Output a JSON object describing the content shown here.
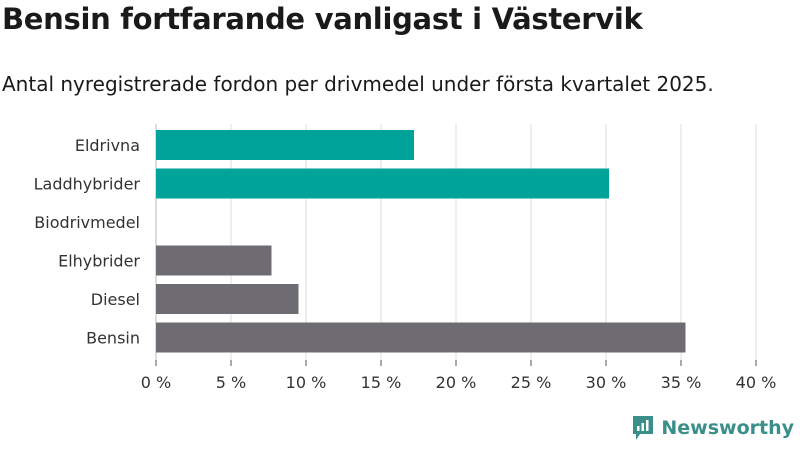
{
  "title": "Bensin fortfarande vanligast i Västervik",
  "subtitle": "Antal nyregistrerade fordon per drivmedel under första kvartalet 2025.",
  "brand": "Newsworthy",
  "colors": {
    "highlight": "#00a39a",
    "base": "#6e6c72",
    "grid": "#dddddd",
    "brand": "#3a8f8a"
  },
  "chart_data": {
    "type": "bar",
    "orientation": "horizontal",
    "categories": [
      "Eldrivna",
      "Laddhybrider",
      "Biodrivmedel",
      "Elhybrider",
      "Diesel",
      "Bensin"
    ],
    "values": [
      17.2,
      30.2,
      0,
      7.7,
      9.5,
      35.3
    ],
    "bar_colors": [
      "highlight",
      "highlight",
      "base",
      "base",
      "base",
      "base"
    ],
    "xlim": [
      0,
      40
    ],
    "x_ticks": [
      0,
      5,
      10,
      15,
      20,
      25,
      30,
      35,
      40
    ],
    "x_tick_labels": [
      "0 %",
      "5 %",
      "10 %",
      "15 %",
      "20 %",
      "25 %",
      "30 %",
      "35 %",
      "40 %"
    ],
    "grid": true
  }
}
